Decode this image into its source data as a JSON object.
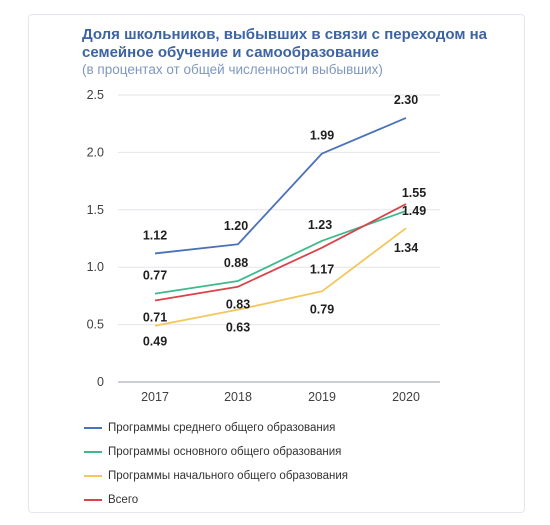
{
  "chart_data": {
    "type": "line",
    "title": "Доля школьников, выбывших в связи с переходом на семейное обучение и самообразование",
    "subtitle": "(в процентах от общей численности выбывших)",
    "categories": [
      "2017",
      "2018",
      "2019",
      "2020"
    ],
    "ylim": [
      0,
      2.5
    ],
    "yticks": [
      "0",
      "0.5",
      "1.0",
      "1.5",
      "2.0",
      "2.5"
    ],
    "grid": true,
    "legend_position": "bottom-left",
    "series": [
      {
        "name": "Программы среднего общего образования",
        "color": "#4a72b8",
        "values": [
          1.12,
          1.2,
          1.99,
          2.3
        ],
        "labels": [
          "1.12",
          "1.20",
          "1.99",
          "2.30"
        ]
      },
      {
        "name": "Программы основного общего образования",
        "color": "#3fb98b",
        "values": [
          0.77,
          0.88,
          1.23,
          1.49
        ],
        "labels": [
          "0.77",
          "0.88",
          "1.23",
          "1.49"
        ]
      },
      {
        "name": "Программы начального общего образования",
        "color": "#f2c75c",
        "values": [
          0.49,
          0.63,
          0.79,
          1.34
        ],
        "labels": [
          "0.49",
          "0.63",
          "0.79",
          "1.34"
        ]
      },
      {
        "name": "Всего",
        "color": "#d9434a",
        "values": [
          0.71,
          0.83,
          1.17,
          1.55
        ],
        "labels": [
          "0.71",
          "0.83",
          "1.17",
          "1.55"
        ]
      }
    ]
  }
}
